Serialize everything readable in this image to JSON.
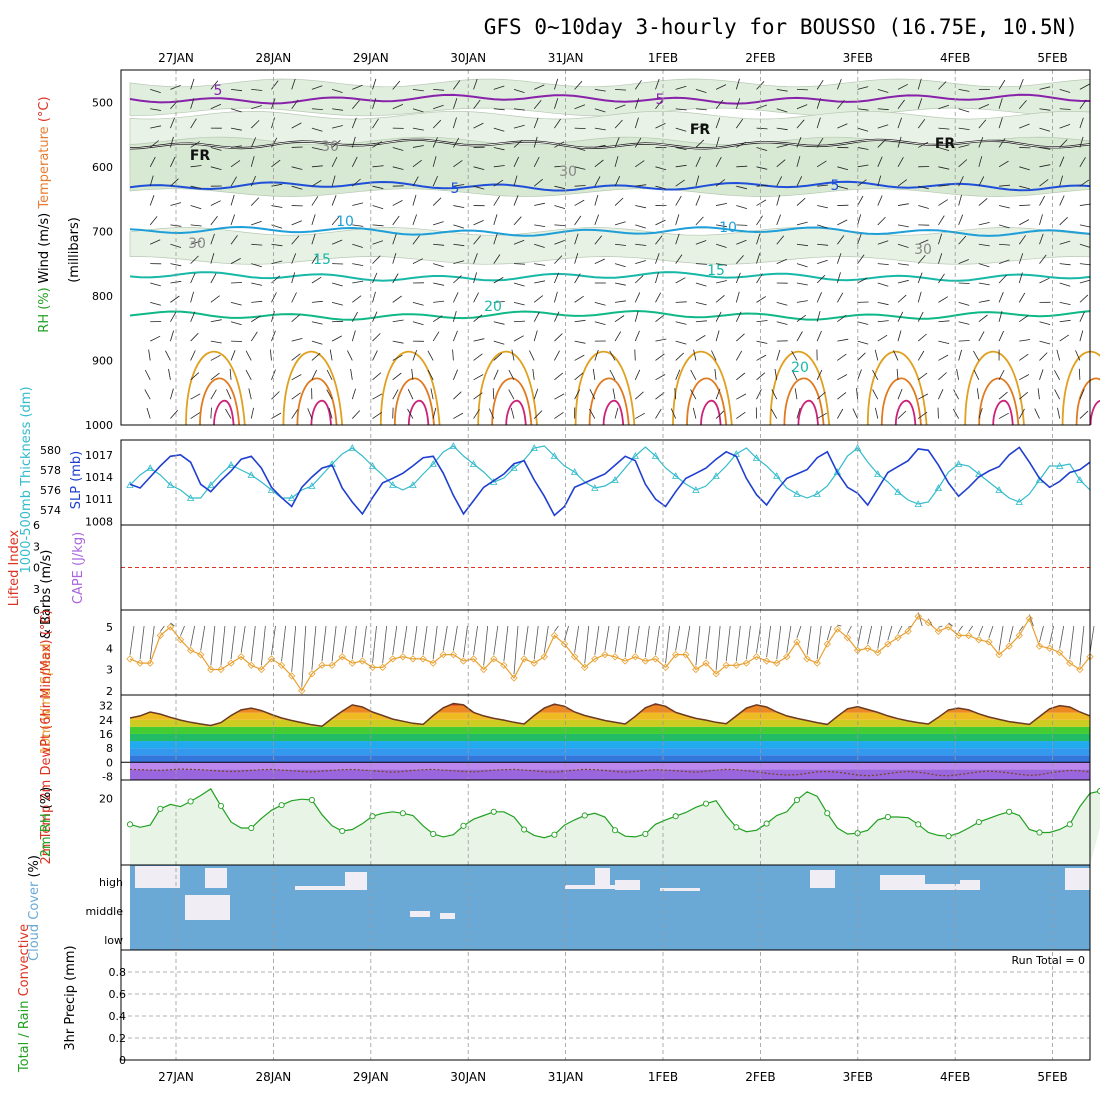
{
  "title": "GFS 0~10day 3-hourly for BOUSSO (16.75E, 10.5N)",
  "colors": {
    "temp": "#e87c30",
    "wind": "#000000",
    "rh": "#22a022",
    "thickness": "#1f3fd0",
    "slp": "#33bbcc",
    "lifted": "#dd3322",
    "cape": "#aa66dd",
    "wind10": "#e8a030",
    "cloud": "#6aa9d6",
    "grid": "#999999"
  },
  "chart_data": [
    {
      "type": "contour",
      "name": "upper-air",
      "ylabel_parts": [
        "Wind",
        "(m/s)",
        "Temperature",
        "(°C)",
        "RH",
        "(%)"
      ],
      "ylabel2": "(millibars)",
      "x": [
        "27JAN",
        "28JAN",
        "29JAN",
        "30JAN",
        "31JAN",
        "1FEB",
        "2FEB",
        "3FEB",
        "4FEB",
        "5FEB"
      ],
      "ylim": [
        1000,
        450
      ],
      "yticks": [
        500,
        600,
        700,
        800,
        900,
        1000
      ],
      "contour_labels": [
        "5",
        "5",
        "FR",
        "FR",
        "FR",
        "5",
        "5",
        "10",
        "10",
        "15",
        "15",
        "20",
        "20",
        "30",
        "30",
        "30",
        "30"
      ],
      "isotherms": [
        {
          "label": "5",
          "level": 495
        },
        {
          "label": "FR",
          "level": 565
        },
        {
          "label": "5",
          "level": 630
        },
        {
          "label": "10",
          "level": 700
        },
        {
          "label": "15",
          "level": 770
        },
        {
          "label": "20",
          "level": 830
        }
      ]
    },
    {
      "type": "line",
      "name": "thickness-slp",
      "ylabel_left": [
        "1000-500mb",
        "Thickness",
        "(dm)"
      ],
      "ylabel_right": [
        "SLP",
        "(mb)"
      ],
      "left_ticks": [
        574,
        576,
        578,
        580
      ],
      "right_ticks": [
        1008,
        1011,
        1014,
        1017
      ],
      "series": [
        {
          "name": "",
          "axis": "left",
          "values": [
            576.5,
            577.5,
            578.2,
            577.5,
            576.5,
            576.0,
            575.2,
            575.2,
            576.5,
            577.6,
            578.5,
            578.0,
            577.5,
            576.8,
            576.0,
            575.2,
            575.2,
            576.0,
            576.4,
            577.5,
            578.6,
            579.6,
            580.2,
            579.4,
            578.4,
            577.5,
            576.5,
            576.0,
            576.5,
            577.6,
            578.6,
            579.8,
            580.4,
            579.4,
            578.6,
            577.8,
            576.8,
            577.2,
            578.2,
            579.0,
            580.2,
            580.4,
            579.4,
            578.4,
            577.8,
            576.8,
            576.2,
            576.4,
            577.0,
            578.2,
            579.4,
            580.3,
            579.4,
            578.2,
            577.4,
            576.6,
            576.0,
            576.4,
            577.4,
            578.4,
            579.6,
            580.2,
            579.2,
            578.4,
            577.4,
            576.2,
            575.6,
            575.2,
            575.6,
            576.4,
            577.8,
            579.4,
            580.2,
            578.8,
            577.6,
            576.8,
            575.8,
            575.0,
            574.6,
            574.8,
            576.2,
            577.8,
            578.6,
            578.4,
            577.6,
            576.8,
            576.0,
            575.2,
            574.8,
            575.6,
            577.0,
            578.4,
            578.4,
            578.6,
            577.0,
            576.0
          ]
        },
        {
          "name": "",
          "axis": "right",
          "values": [
            1013.0,
            1012.5,
            1014.0,
            1015.5,
            1016.8,
            1017.0,
            1016.0,
            1013.0,
            1012.0,
            1013.5,
            1014.8,
            1016.4,
            1016.8,
            1015.2,
            1012.6,
            1011.2,
            1010.0,
            1012.6,
            1014.0,
            1015.2,
            1015.6,
            1012.5,
            1010.6,
            1009.0,
            1011.2,
            1013.2,
            1013.8,
            1014.5,
            1015.5,
            1016.6,
            1016.8,
            1014.5,
            1011.5,
            1009.0,
            1010.8,
            1012.6,
            1013.5,
            1014.4,
            1015.8,
            1016.2,
            1013.6,
            1011.4,
            1008.8,
            1010.0,
            1012.6,
            1013.2,
            1013.8,
            1014.4,
            1015.6,
            1016.8,
            1016.2,
            1013.0,
            1011.0,
            1010.0,
            1012.0,
            1013.8,
            1014.5,
            1015.2,
            1016.4,
            1017.4,
            1016.8,
            1013.8,
            1011.6,
            1010.2,
            1012.2,
            1013.8,
            1014.4,
            1015.0,
            1016.6,
            1017.4,
            1014.6,
            1012.6,
            1011.8,
            1010.2,
            1012.4,
            1014.6,
            1015.4,
            1016.2,
            1017.8,
            1017.6,
            1015.6,
            1013.2,
            1011.4,
            1012.6,
            1014.0,
            1014.8,
            1015.4,
            1017.0,
            1018.0,
            1016.0,
            1013.8,
            1012.6,
            1013.4,
            1014.6,
            1015.0,
            1016.0
          ]
        }
      ]
    },
    {
      "type": "line",
      "name": "stability",
      "ylabel_left": [
        "Lifted Index"
      ],
      "ylabel_right": [
        "CAPE",
        "(J/kg)"
      ],
      "left_ticks": [
        "-6",
        "-3",
        "0",
        "3",
        "6"
      ],
      "ylim": [
        -6,
        6
      ],
      "values_lifted_index": [],
      "values_cape": []
    },
    {
      "type": "line",
      "name": "wind10m",
      "ylabel": [
        "10m Wind",
        "Speed",
        "& Barbs",
        "(m/s)"
      ],
      "ylim": [
        1.8,
        5.8
      ],
      "yticks": [
        2,
        3,
        4,
        5
      ],
      "values": [
        3.5,
        3.3,
        3.3,
        4.6,
        5.0,
        4.4,
        3.9,
        3.7,
        3.0,
        3.0,
        3.3,
        3.6,
        3.2,
        3.0,
        3.5,
        3.2,
        2.7,
        2.0,
        2.8,
        3.2,
        3.2,
        3.6,
        3.3,
        3.4,
        3.1,
        3.1,
        3.5,
        3.6,
        3.5,
        3.5,
        3.3,
        3.7,
        3.7,
        3.4,
        3.5,
        3.0,
        3.5,
        3.2,
        2.6,
        3.5,
        3.3,
        3.6,
        4.6,
        4.2,
        3.6,
        3.1,
        3.5,
        3.7,
        3.6,
        3.4,
        3.6,
        3.4,
        3.5,
        3.1,
        3.7,
        3.7,
        3.0,
        3.3,
        2.8,
        3.2,
        3.2,
        3.3,
        3.6,
        3.4,
        3.3,
        3.6,
        4.3,
        3.5,
        3.3,
        4.2,
        4.9,
        4.5,
        3.9,
        4.0,
        3.8,
        4.2,
        4.5,
        4.8,
        5.5,
        5.2,
        4.8,
        5.0,
        4.6,
        4.6,
        4.4,
        4.3,
        3.7,
        4.1,
        4.6,
        5.4,
        4.1,
        4.0,
        3.8,
        3.3,
        3.0,
        3.6
      ]
    },
    {
      "type": "area",
      "name": "temp2m",
      "ylabel": [
        "2m Temp",
        "2m DewPt",
        "(6hr Min/Max)",
        "(°C)"
      ],
      "ylim": [
        -10,
        38
      ],
      "yticks": [
        -8,
        0,
        8,
        16,
        24,
        32
      ],
      "temp_values": [
        25.0,
        26.2,
        28.4,
        27.2,
        25.4,
        23.8,
        22.6,
        21.6,
        20.8,
        22.4,
        26.4,
        29.6,
        30.6,
        29.2,
        27.0,
        25.0,
        23.6,
        22.4,
        21.2,
        20.4,
        24.8,
        28.8,
        32.4,
        31.2,
        28.4,
        26.4,
        24.4,
        23.2,
        22.0,
        21.4,
        26.4,
        30.8,
        33.2,
        32.4,
        28.2,
        26.2,
        24.8,
        23.8,
        22.6,
        21.6,
        26.4,
        30.6,
        32.8,
        31.6,
        28.4,
        26.4,
        25.0,
        23.6,
        22.6,
        21.6,
        26.0,
        30.8,
        33.0,
        31.6,
        28.2,
        26.4,
        24.8,
        23.8,
        22.6,
        21.8,
        26.2,
        30.6,
        32.4,
        31.2,
        28.4,
        26.2,
        24.8,
        23.6,
        22.4,
        21.4,
        26.0,
        30.2,
        31.4,
        29.8,
        28.2,
        26.2,
        24.6,
        23.4,
        22.4,
        21.6,
        25.4,
        29.6,
        30.6,
        29.6,
        27.4,
        25.6,
        24.2,
        23.0,
        22.2,
        21.4,
        25.8,
        30.2,
        32.0,
        31.2,
        28.4,
        26.2
      ],
      "dewpoint_values": [
        -4.0,
        -4.2,
        -4.4,
        -4.6,
        -4.2,
        -3.8,
        -4.0,
        -4.2,
        -4.6,
        -5.0,
        -5.2,
        -5.0,
        -4.6,
        -4.2,
        -4.0,
        -4.4,
        -4.8,
        -5.2,
        -5.4,
        -5.0,
        -4.6,
        -4.2,
        -4.0,
        -4.4,
        -4.8,
        -5.2,
        -5.6,
        -5.2,
        -4.6,
        -4.2,
        -4.0,
        -4.4,
        -4.8,
        -5.2,
        -5.4,
        -5.0,
        -4.4,
        -4.2,
        -4.0,
        -4.4,
        -4.8,
        -5.4,
        -5.6,
        -5.0,
        -4.4,
        -4.0,
        -4.2,
        -4.6,
        -5.2,
        -5.6,
        -5.2,
        -4.6,
        -4.2,
        -4.4,
        -4.8,
        -5.2,
        -5.6,
        -5.0,
        -4.4,
        -4.0,
        -4.2,
        -4.8,
        -5.4,
        -6.2,
        -6.8,
        -7.2,
        -7.0,
        -6.2,
        -5.4,
        -5.2,
        -5.6,
        -6.4,
        -7.2,
        -7.6,
        -7.2,
        -6.4,
        -5.6,
        -5.2,
        -5.6,
        -6.4,
        -7.4,
        -7.6,
        -7.0,
        -6.2,
        -5.4,
        -5.0,
        -5.4,
        -6.0,
        -6.8,
        -7.4,
        -7.0,
        -6.0,
        -5.2,
        -4.6,
        -4.8,
        -5.4
      ]
    },
    {
      "type": "area",
      "name": "rh2m",
      "ylabel": [
        "2m RH",
        "(%)"
      ],
      "ylim": [
        2,
        25
      ],
      "yticks": [
        20
      ],
      "values": [
        13.0,
        12.2,
        12.8,
        17.2,
        18.4,
        17.8,
        19.2,
        20.8,
        22.6,
        18.0,
        13.6,
        12.0,
        12.0,
        14.6,
        16.8,
        18.2,
        19.4,
        19.8,
        19.6,
        15.6,
        12.6,
        11.2,
        11.6,
        13.2,
        15.2,
        16.0,
        16.4,
        16.0,
        15.4,
        12.6,
        10.4,
        9.6,
        10.2,
        12.6,
        14.4,
        15.4,
        16.4,
        16.4,
        15.0,
        11.6,
        10.0,
        9.4,
        10.2,
        12.8,
        14.2,
        15.4,
        16.0,
        15.0,
        11.4,
        9.8,
        9.6,
        10.4,
        13.0,
        14.2,
        15.2,
        16.2,
        17.6,
        18.6,
        19.4,
        15.4,
        12.2,
        11.0,
        11.4,
        13.2,
        15.4,
        16.4,
        19.6,
        21.8,
        20.6,
        16.0,
        12.0,
        10.4,
        10.6,
        11.4,
        14.2,
        15.0,
        15.0,
        14.8,
        13.0,
        10.8,
        10.0,
        9.8,
        10.6,
        12.0,
        13.6,
        14.6,
        15.6,
        16.4,
        15.4,
        11.6,
        10.8,
        10.8,
        11.6,
        13.0,
        17.8,
        21.4,
        22.0,
        22.4
      ]
    },
    {
      "type": "table",
      "name": "cloud-cover",
      "ylabel": [
        "Cloud Cover",
        "(%)"
      ],
      "levels": [
        "high",
        "middle",
        "low"
      ]
    },
    {
      "type": "bar",
      "name": "precip",
      "ylabel_left": [
        "Total / Rain",
        "Convective"
      ],
      "ylabel": [
        "3hr Precip",
        "(mm)"
      ],
      "ylim": [
        0,
        1.0
      ],
      "yticks": [
        "0",
        "0.2",
        "0.4",
        "0.6",
        "0.8"
      ],
      "run_total": "Run Total = 0",
      "values": []
    }
  ]
}
